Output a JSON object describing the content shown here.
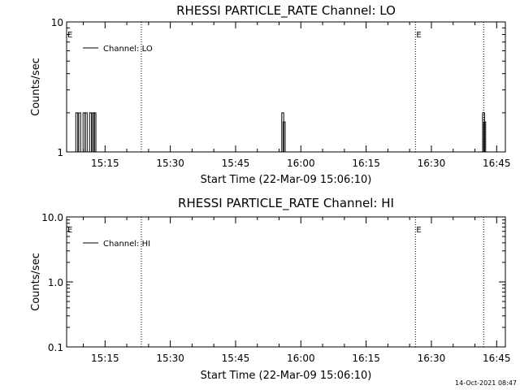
{
  "footer": {
    "timestamp": "14-Oct-2021 08:47"
  },
  "chart_data": [
    {
      "type": "line",
      "title": "RHESSI PARTICLE_RATE Channel: LO",
      "xlabel": "Start Time (22-Mar-09 15:06:10)",
      "ylabel": "Counts/sec",
      "y_scale": "log",
      "ylim": [
        1,
        10
      ],
      "y_ticks": [
        "1",
        "10"
      ],
      "xlim": [
        "15:06:10",
        "16:47:00"
      ],
      "x_ticks": [
        "15:15",
        "15:30",
        "15:45",
        "16:00",
        "16:15",
        "16:30",
        "16:45"
      ],
      "legend": {
        "entries": [
          "Channel: LO"
        ],
        "position": "top-left"
      },
      "markers": [
        {
          "time": "15:23:20",
          "label": ""
        },
        {
          "time": "16:26:20",
          "label": "E"
        },
        {
          "time": "16:42:00",
          "label": ""
        }
      ],
      "edge_label": "E",
      "series": [
        {
          "name": "Channel: LO",
          "x": [
            "15:08:30",
            "15:09:10",
            "15:10:10",
            "15:10:40",
            "15:11:40",
            "15:12:20",
            "15:12:40",
            "15:55:50",
            "15:56:10",
            "16:42:00",
            "16:42:15"
          ],
          "values": [
            2,
            2,
            2,
            2,
            2,
            2,
            2,
            2,
            1.7,
            2,
            1.7
          ]
        }
      ]
    },
    {
      "type": "line",
      "title": "RHESSI PARTICLE_RATE Channel: HI",
      "xlabel": "Start Time (22-Mar-09 15:06:10)",
      "ylabel": "Counts/sec",
      "y_scale": "log",
      "ylim": [
        0.1,
        10
      ],
      "y_ticks": [
        "0.1",
        "1.0",
        "10.0"
      ],
      "xlim": [
        "15:06:10",
        "16:47:00"
      ],
      "x_ticks": [
        "15:15",
        "15:30",
        "15:45",
        "16:00",
        "16:15",
        "16:30",
        "16:45"
      ],
      "legend": {
        "entries": [
          "Channel: HI"
        ],
        "position": "top-left"
      },
      "markers": [
        {
          "time": "15:23:20",
          "label": ""
        },
        {
          "time": "16:26:20",
          "label": "E"
        },
        {
          "time": "16:42:00",
          "label": ""
        }
      ],
      "edge_label": "E",
      "series": [
        {
          "name": "Channel: HI",
          "x": [],
          "values": []
        }
      ]
    }
  ]
}
